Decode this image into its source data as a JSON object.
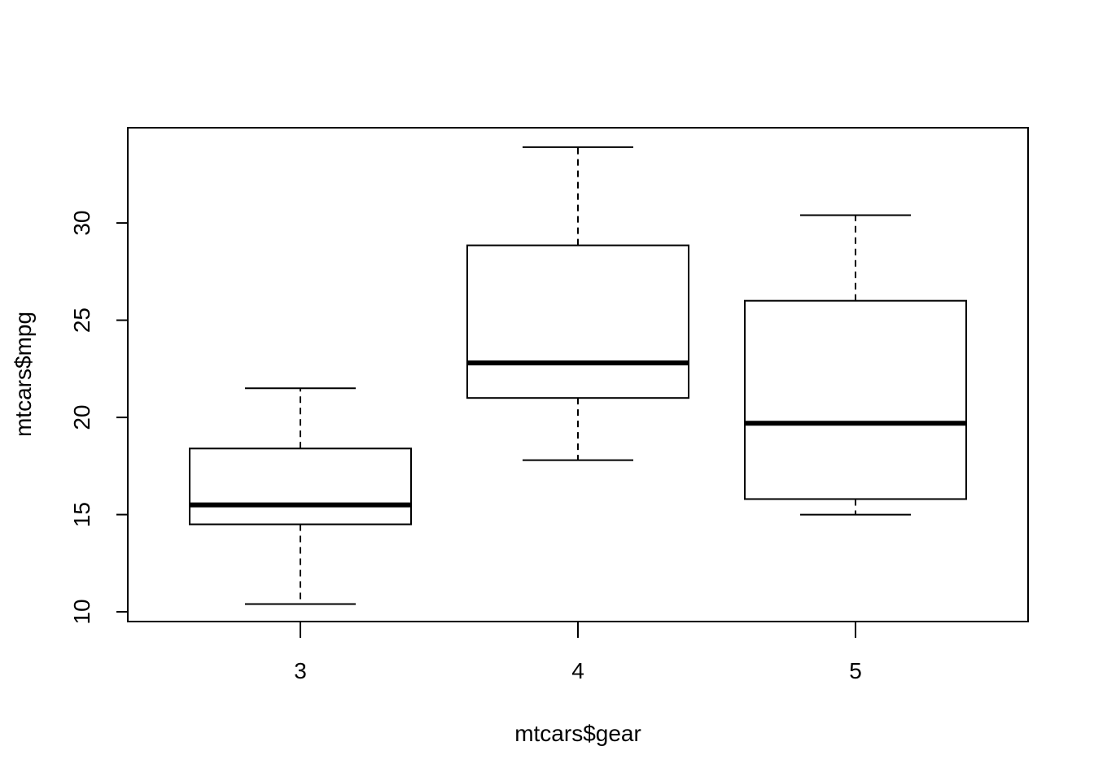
{
  "chart_data": {
    "type": "boxplot",
    "title": "",
    "xlabel": "mtcars$gear",
    "ylabel": "mtcars$mpg",
    "categories": [
      "3",
      "4",
      "5"
    ],
    "boxes": [
      {
        "category": "3",
        "whisker_low": 10.4,
        "q1": 14.5,
        "median": 15.5,
        "q3": 18.4,
        "whisker_high": 21.5
      },
      {
        "category": "4",
        "whisker_low": 17.8,
        "q1": 21.0,
        "median": 22.8,
        "q3": 28.85,
        "whisker_high": 33.9
      },
      {
        "category": "5",
        "whisker_low": 15.0,
        "q1": 15.8,
        "median": 19.7,
        "q3": 26.0,
        "whisker_high": 30.4
      }
    ],
    "ylim": [
      9.5,
      34.9
    ],
    "y_ticks": [
      10,
      15,
      20,
      25,
      30
    ],
    "grid": false,
    "legend": "none"
  },
  "colors": {
    "box_fill": "#ffffff",
    "stroke": "#000000"
  }
}
